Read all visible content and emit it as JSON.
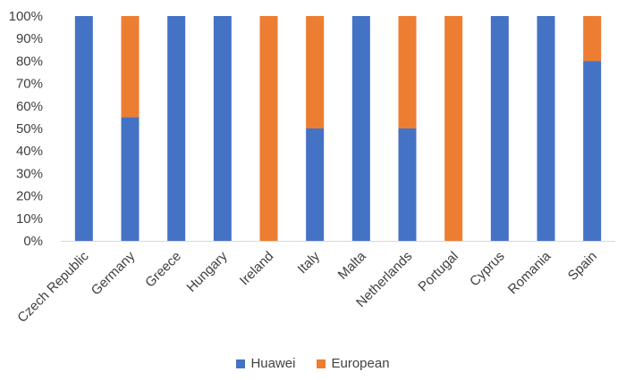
{
  "chart_data": {
    "type": "bar",
    "stacked": true,
    "categories": [
      "Czech Republic",
      "Germany",
      "Greece",
      "Hungary",
      "Ireland",
      "Italy",
      "Malta",
      "Netherlands",
      "Portugal",
      "Cyprus",
      "Romania",
      "Spain"
    ],
    "series": [
      {
        "name": "Huawei",
        "color": "#4472C4",
        "values": [
          100,
          55,
          100,
          100,
          0,
          50,
          100,
          50,
          0,
          100,
          100,
          80
        ]
      },
      {
        "name": "European",
        "color": "#ED7D31",
        "values": [
          0,
          45,
          0,
          0,
          100,
          50,
          0,
          50,
          100,
          0,
          0,
          20
        ]
      }
    ],
    "yticks": [
      "0%",
      "10%",
      "20%",
      "30%",
      "40%",
      "50%",
      "60%",
      "70%",
      "80%",
      "90%",
      "100%"
    ],
    "ylim": [
      0,
      100
    ],
    "grid": false,
    "legend_position": "bottom"
  }
}
